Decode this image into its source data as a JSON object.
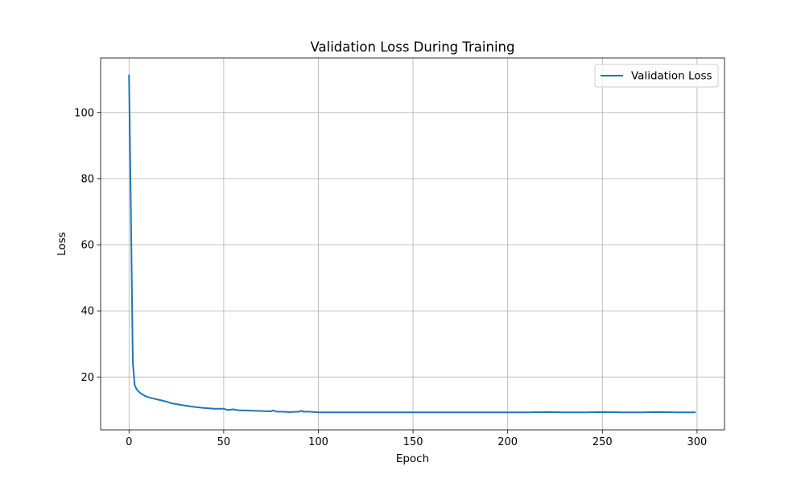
{
  "chart_data": {
    "type": "line",
    "title": "Validation Loss During Training",
    "xlabel": "Epoch",
    "ylabel": "Loss",
    "xlim": [
      -15,
      314.5
    ],
    "ylim": [
      4.0,
      116.5
    ],
    "xticks": [
      0,
      50,
      100,
      150,
      200,
      250,
      300
    ],
    "yticks": [
      20,
      40,
      60,
      80,
      100
    ],
    "grid": true,
    "legend_position": "top-right",
    "series": [
      {
        "name": "Validation Loss",
        "color": "#1f77b4",
        "x": [
          0,
          1,
          2,
          3,
          4,
          5,
          6,
          8,
          10,
          12,
          15,
          18,
          20,
          22,
          25,
          30,
          35,
          40,
          45,
          50,
          52,
          55,
          58,
          60,
          65,
          70,
          75,
          76,
          78,
          80,
          85,
          90,
          91,
          92,
          95,
          100,
          110,
          120,
          130,
          140,
          150,
          160,
          170,
          180,
          190,
          200,
          210,
          220,
          230,
          240,
          250,
          260,
          270,
          280,
          290,
          299
        ],
        "y": [
          111.3,
          70.0,
          24.5,
          17.5,
          16.3,
          15.6,
          15.1,
          14.4,
          13.9,
          13.6,
          13.2,
          12.8,
          12.5,
          12.1,
          11.8,
          11.3,
          10.9,
          10.6,
          10.4,
          10.4,
          10.0,
          10.2,
          9.9,
          9.9,
          9.8,
          9.7,
          9.6,
          9.9,
          9.5,
          9.5,
          9.4,
          9.5,
          9.8,
          9.5,
          9.5,
          9.3,
          9.3,
          9.3,
          9.3,
          9.3,
          9.3,
          9.3,
          9.3,
          9.3,
          9.3,
          9.3,
          9.3,
          9.4,
          9.3,
          9.3,
          9.4,
          9.3,
          9.3,
          9.4,
          9.3,
          9.3
        ]
      }
    ]
  }
}
